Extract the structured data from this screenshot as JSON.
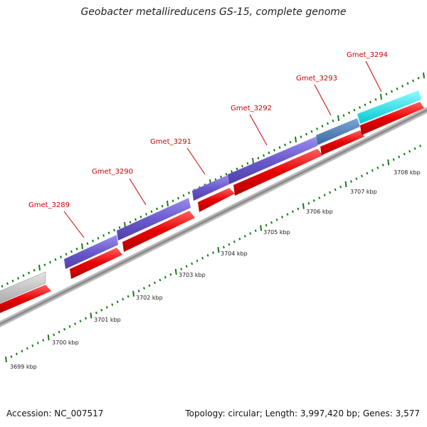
{
  "title": "Geobacter metallireducens GS-15, complete genome",
  "footer": {
    "accession": "Accession: NC_007517",
    "summary": "Topology: circular; Length: 3,997,420 bp; Genes: 3,577"
  },
  "kbp_labels": [
    "3699 kbp",
    "3700 kbp",
    "3701 kbp",
    "3702 kbp",
    "3703 kbp",
    "3704 kbp",
    "3705 kbp",
    "3706 kbp",
    "3707 kbp",
    "3708 kbp"
  ],
  "gene_labels": [
    "Gmet_3289",
    "Gmet_3290",
    "Gmet_3291",
    "Gmet_3292",
    "Gmet_3293",
    "Gmet_3294"
  ],
  "colors": {
    "cds": "#e80000",
    "gene_default": "#6a5acd",
    "gene_3293": "#4a7eb5",
    "gene_3294": "#10e8f0",
    "gene_left": "#c8c8c8",
    "ticks": "#1a7a1a",
    "label": "#cc0000",
    "backbone": "#8c8c8c"
  }
}
